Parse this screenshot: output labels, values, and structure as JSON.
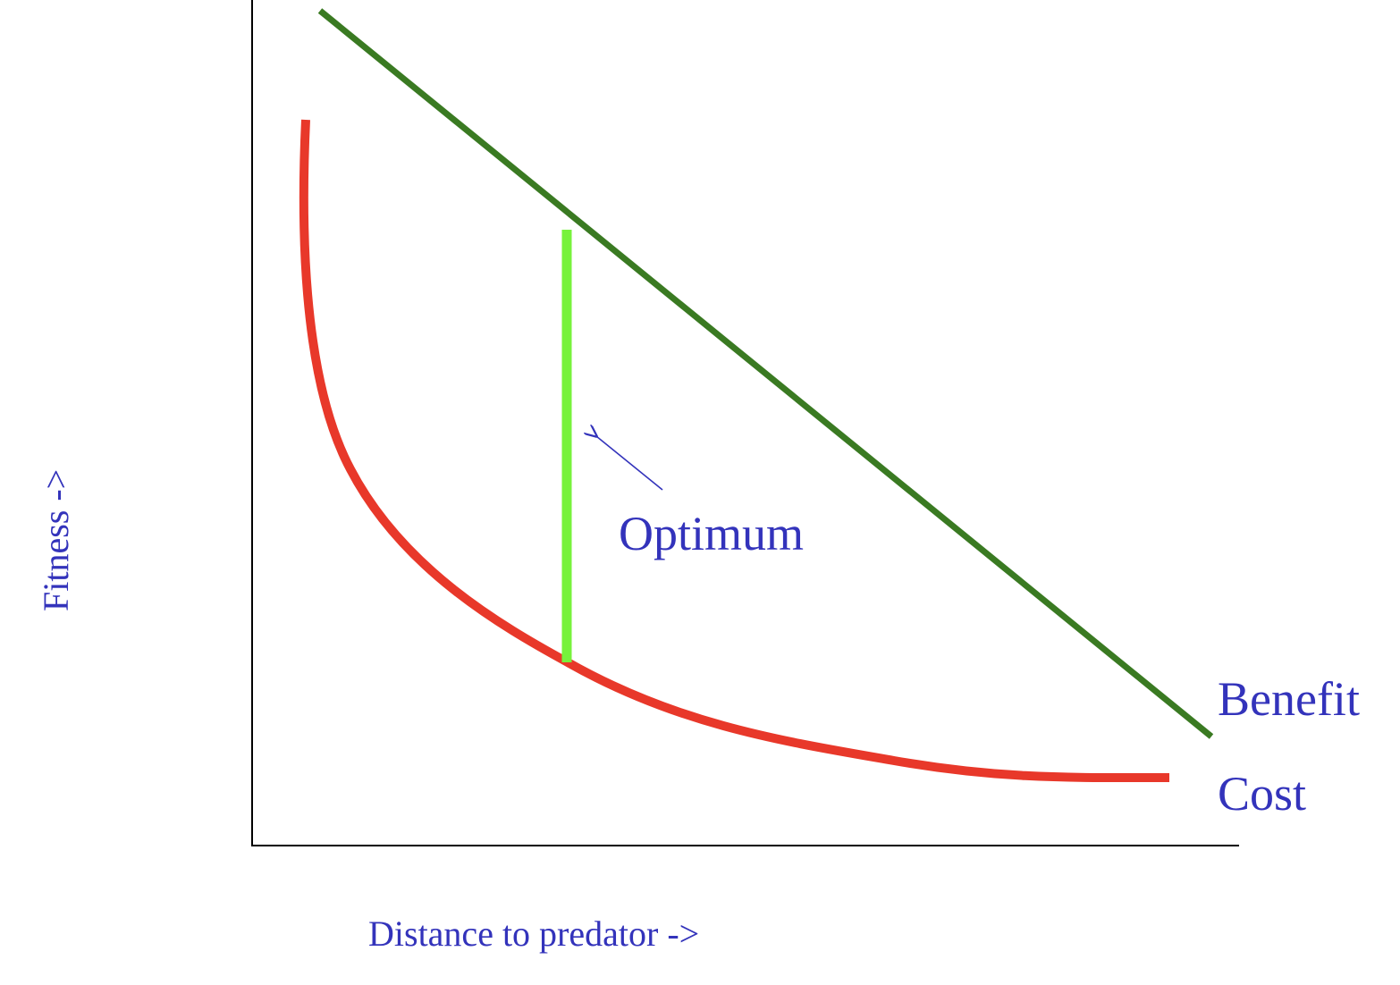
{
  "labels": {
    "x_axis": "Distance to predator ->",
    "y_axis": "Fitness ->",
    "optimum": "Optimum",
    "benefit": "Benefit",
    "cost": "Cost"
  },
  "colors": {
    "axes": "#000000",
    "benefit_line": "#3a7a22",
    "cost_curve": "#e8382a",
    "optimum_marker": "#77f23c",
    "text": "#3333bb"
  },
  "icons": {
    "optimum_pointer": "arrow-icon"
  }
}
